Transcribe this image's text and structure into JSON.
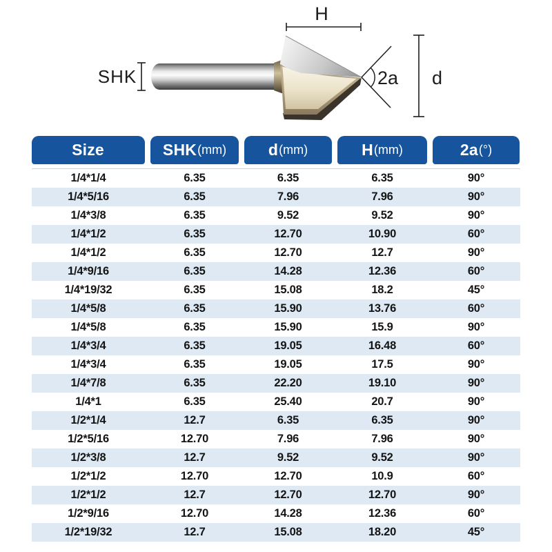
{
  "diagram": {
    "labels": {
      "shank": "SHK",
      "cut_height": "H",
      "angle": "2a",
      "diameter": "d"
    }
  },
  "table": {
    "headers": [
      {
        "main": "Size",
        "sub": ""
      },
      {
        "main": "SHK",
        "sub": "(mm)"
      },
      {
        "main": "d",
        "sub": "(mm)"
      },
      {
        "main": "H",
        "sub": "(mm)"
      },
      {
        "main": "2a",
        "sub": "(°)"
      }
    ],
    "rows": [
      [
        "1/4*1/4",
        "6.35",
        "6.35",
        "6.35",
        "90°"
      ],
      [
        "1/4*5/16",
        "6.35",
        "7.96",
        "7.96",
        "90°"
      ],
      [
        "1/4*3/8",
        "6.35",
        "9.52",
        "9.52",
        "90°"
      ],
      [
        "1/4*1/2",
        "6.35",
        "12.70",
        "10.90",
        "60°"
      ],
      [
        "1/4*1/2",
        "6.35",
        "12.70",
        "12.7",
        "90°"
      ],
      [
        "1/4*9/16",
        "6.35",
        "14.28",
        "12.36",
        "60°"
      ],
      [
        "1/4*19/32",
        "6.35",
        "15.08",
        "18.2",
        "45°"
      ],
      [
        "1/4*5/8",
        "6.35",
        "15.90",
        "13.76",
        "60°"
      ],
      [
        "1/4*5/8",
        "6.35",
        "15.90",
        "15.9",
        "90°"
      ],
      [
        "1/4*3/4",
        "6.35",
        "19.05",
        "16.48",
        "60°"
      ],
      [
        "1/4*3/4",
        "6.35",
        "19.05",
        "17.5",
        "90°"
      ],
      [
        "1/4*7/8",
        "6.35",
        "22.20",
        "19.10",
        "90°"
      ],
      [
        "1/4*1",
        "6.35",
        "25.40",
        "20.7",
        "90°"
      ],
      [
        "1/2*1/4",
        "12.7",
        "6.35",
        "6.35",
        "90°"
      ],
      [
        "1/2*5/16",
        "12.70",
        "7.96",
        "7.96",
        "90°"
      ],
      [
        "1/2*3/8",
        "12.7",
        "9.52",
        "9.52",
        "90°"
      ],
      [
        "1/2*1/2",
        "12.70",
        "12.70",
        "10.9",
        "60°"
      ],
      [
        "1/2*1/2",
        "12.7",
        "12.70",
        "12.70",
        "90°"
      ],
      [
        "1/2*9/16",
        "12.70",
        "14.28",
        "12.36",
        "60°"
      ],
      [
        "1/2*19/32",
        "12.7",
        "15.08",
        "18.20",
        "45°"
      ]
    ]
  },
  "colors": {
    "header_blue": "#17549E",
    "row_alt_blue": "#DEE9F4",
    "text_dark": "#141414"
  }
}
